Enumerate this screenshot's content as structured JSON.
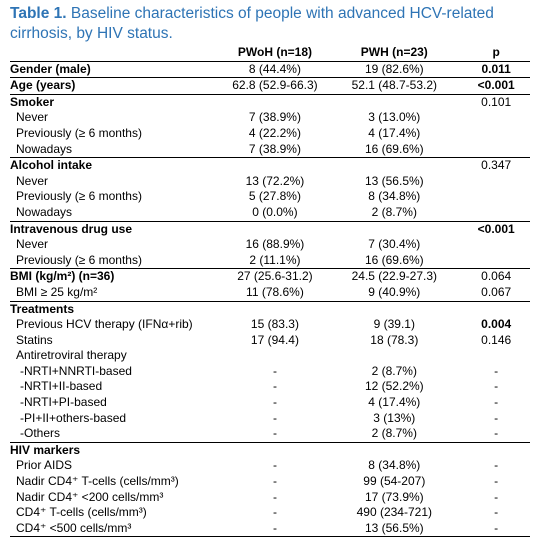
{
  "title": {
    "label": "Table 1.",
    "text": "Baseline characteristics of people with advanced HCV-related cirrhosis, by HIV status."
  },
  "table": {
    "header": [
      "PWoH (n=18)",
      "PWH (n=23)",
      "p"
    ],
    "rows": [
      {
        "label": "Gender (male)",
        "pwoh": "8 (44.4%)",
        "pwh": "19 (82.6%)",
        "p": "0.011"
      },
      {
        "label": "Age (years)",
        "pwoh": "62.8 (52.9-66.3)",
        "pwh": "52.1 (48.7-53.2)",
        "p": "<0.001"
      },
      {
        "label": "Smoker",
        "p": "0.101"
      },
      {
        "label": "Never",
        "pwoh": "7 (38.9%)",
        "pwh": "3 (13.0%)"
      },
      {
        "label": "Previously (≥ 6 months)",
        "pwoh": "4 (22.2%)",
        "pwh": "4 (17.4%)"
      },
      {
        "label": "Nowadays",
        "pwoh": "7 (38.9%)",
        "pwh": "16 (69.6%)"
      },
      {
        "label": "Alcohol intake",
        "p": "0.347"
      },
      {
        "label": "Never",
        "pwoh": "13 (72.2%)",
        "pwh": "13 (56.5%)"
      },
      {
        "label": "Previously (≥ 6 months)",
        "pwoh": "5 (27.8%)",
        "pwh": "8 (34.8%)"
      },
      {
        "label": "Nowadays",
        "pwoh": "0 (0.0%)",
        "pwh": "2 (8.7%)"
      },
      {
        "label": "Intravenous drug use",
        "p": "<0.001"
      },
      {
        "label": "Never",
        "pwoh": "16 (88.9%)",
        "pwh": "7 (30.4%)"
      },
      {
        "label": "Previously (≥ 6 months)",
        "pwoh": "2 (11.1%)",
        "pwh": "16 (69.6%)"
      },
      {
        "label": "BMI (kg/m²) (n=36)",
        "pwoh": "27 (25.6-31.2)",
        "pwh": "24.5 (22.9-27.3)",
        "p": "0.064"
      },
      {
        "label": "BMI ≥ 25 kg/m²",
        "pwoh": "11 (78.6%)",
        "pwh": "9 (40.9%)",
        "p": "0.067"
      },
      {
        "label": "Treatments"
      },
      {
        "label": "Previous HCV therapy (IFNα+rib)",
        "pwoh": "15 (83.3)",
        "pwh": "9 (39.1)",
        "p": "0.004"
      },
      {
        "label": "Statins",
        "pwoh": "17 (94.4)",
        "pwh": "18 (78.3)",
        "p": "0.146"
      },
      {
        "label": "Antiretroviral therapy"
      },
      {
        "label": "-NRTI+NNRTI-based",
        "pwoh": "-",
        "pwh": "2 (8.7%)",
        "p": "-"
      },
      {
        "label": "-NRTI+II-based",
        "pwoh": "-",
        "pwh": "12 (52.2%)",
        "p": "-"
      },
      {
        "label": "-NRTI+PI-based",
        "pwoh": "-",
        "pwh": "4 (17.4%)",
        "p": "-"
      },
      {
        "label": "-PI+II+others-based",
        "pwoh": "-",
        "pwh": "3 (13%)",
        "p": "-"
      },
      {
        "label": "-Others",
        "pwoh": "-",
        "pwh": "2 (8.7%)",
        "p": "-"
      },
      {
        "label": "HIV markers"
      },
      {
        "label": "Prior AIDS",
        "pwoh": "-",
        "pwh": "8 (34.8%)",
        "p": "-"
      },
      {
        "label": "Nadir CD4⁺ T-cells (cells/mm³)",
        "pwoh": "-",
        "pwh": "99 (54-207)",
        "p": "-"
      },
      {
        "label": "Nadir CD4⁺ <200 cells/mm³",
        "pwoh": "-",
        "pwh": "17 (73.9%)",
        "p": "-"
      },
      {
        "label": "CD4⁺ T-cells (cells/mm³)",
        "pwoh": "-",
        "pwh": "490 (234-721)",
        "p": "-"
      },
      {
        "label": "CD4⁺ <500 cells/mm³",
        "pwoh": "-",
        "pwh": "13 (56.5%)",
        "p": "-"
      }
    ]
  }
}
